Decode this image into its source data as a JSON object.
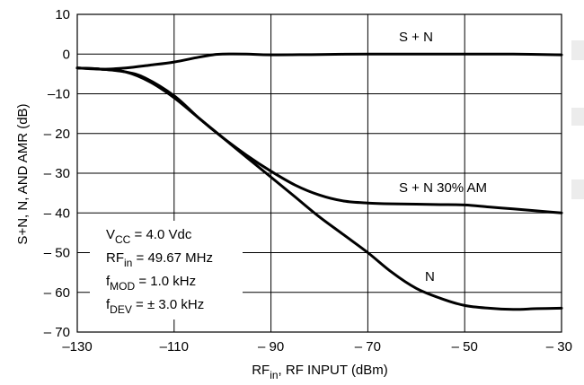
{
  "chart_data": {
    "type": "line",
    "xlabel_main": "RF",
    "xlabel_sub": "in",
    "xlabel_rest": ", RF INPUT (dBm)",
    "ylabel": "S+N, N, AND AMR (dB)",
    "xlim": [
      -130,
      -30
    ],
    "ylim": [
      -70,
      10
    ],
    "grid": true,
    "x_ticks": [
      -130,
      -110,
      -90,
      -70,
      -50,
      -30
    ],
    "x_tick_labels": [
      "–130",
      "–110",
      "– 90",
      "– 70",
      "– 50",
      "– 30"
    ],
    "y_ticks": [
      10,
      0,
      -10,
      -20,
      -30,
      -40,
      -50,
      -60,
      -70
    ],
    "y_tick_labels": [
      "10",
      "0",
      "–10",
      "– 20",
      "– 30",
      "– 40",
      "– 50",
      "– 60",
      "– 70"
    ],
    "series": [
      {
        "name": "S + N",
        "x": [
          -130,
          -125,
          -120,
          -115,
          -110,
          -105,
          -102,
          -100,
          -95,
          -90,
          -80,
          -70,
          -60,
          -50,
          -40,
          -30
        ],
        "y": [
          -3.5,
          -3.8,
          -3.5,
          -2.8,
          -2,
          -0.8,
          -0.2,
          0,
          0,
          -0.2,
          -0.1,
          0,
          0,
          0,
          0,
          -0.2
        ]
      },
      {
        "name": "S + N 30% AM",
        "x": [
          -130,
          -125,
          -120,
          -116,
          -110,
          -105,
          -100,
          -95,
          -90,
          -85,
          -80,
          -75,
          -70,
          -65,
          -60,
          -55,
          -50,
          -45,
          -40,
          -35,
          -30
        ],
        "y": [
          -3.5,
          -3.8,
          -4.5,
          -6,
          -10.5,
          -16,
          -21,
          -25.5,
          -29.5,
          -33,
          -35.5,
          -37,
          -37.5,
          -37.7,
          -37.8,
          -37.9,
          -38,
          -38.5,
          -39,
          -39.5,
          -40
        ]
      },
      {
        "name": "N",
        "x": [
          -130,
          -125,
          -120,
          -115,
          -110,
          -105,
          -100,
          -95,
          -90,
          -85,
          -80,
          -75,
          -70,
          -65,
          -60,
          -55,
          -50,
          -45,
          -40,
          -35,
          -30
        ],
        "y": [
          -3.5,
          -3.8,
          -4.5,
          -7,
          -11,
          -16,
          -21,
          -26,
          -31,
          -36,
          -41,
          -45.5,
          -50,
          -55,
          -59,
          -61.5,
          -63.3,
          -64,
          -64.3,
          -64.1,
          -64
        ]
      }
    ],
    "series_labels": [
      "S + N",
      "S + N 30% AM",
      "N"
    ],
    "conditions": [
      {
        "main": "V",
        "sub": "CC",
        "rest": " = 4.0 Vdc"
      },
      {
        "main": "RF",
        "sub": "in",
        "rest": " = 49.67 MHz"
      },
      {
        "main": "f",
        "sub": "MOD",
        "rest": " = 1.0 kHz"
      },
      {
        "main": "f",
        "sub": "DEV",
        "rest": " = ± 3.0 kHz"
      }
    ]
  }
}
